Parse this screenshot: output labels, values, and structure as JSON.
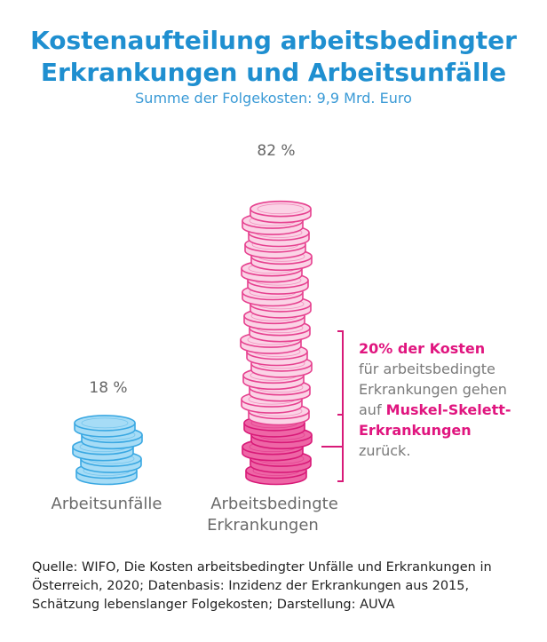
{
  "title_line1": "Kostenaufteilung arbeitsbedingter",
  "title_line2": "Erkrankungen und Arbeitsunfälle",
  "subtitle": "Summe der Folgekosten: 9,9 Mrd. Euro",
  "chart_data": {
    "type": "bar",
    "categories": [
      "Arbeitsunfälle",
      "Arbeitsbedingte Erkrankungen"
    ],
    "category_lines": [
      [
        "Arbeitsunfälle"
      ],
      [
        "Arbeitsbedingte",
        "Erkrankungen"
      ]
    ],
    "values": [
      18,
      82
    ],
    "value_labels": [
      "18 %",
      "82 %"
    ],
    "unit": "%",
    "highlight": {
      "category": "Arbeitsbedingte Erkrankungen",
      "share_of_category": 20
    }
  },
  "annotation": {
    "line1": "20% der Kosten",
    "line2": "für arbeitsbedingte",
    "line3": "Erkrankungen gehen",
    "line4_prefix": "auf ",
    "line4_highlight": "Muskel-Skelett-",
    "line5": "Erkrankungen",
    "line6": "zurück."
  },
  "source": {
    "line1": "Quelle: WIFO, Die Kosten arbeitsbedingter Unfälle und Erkrankungen in",
    "line2": "Österreich, 2020; Datenbasis: Inzidenz der Erkrankungen aus 2015,",
    "line3": "Schätzung lebenslanger Folgekosten; Darstellung: AUVA"
  },
  "colors": {
    "title": "#1f8fd0",
    "accident_fill": "#a6dcf6",
    "accident_stroke": "#3aa8e2",
    "disease_fill": "#fbd3e6",
    "disease_stroke": "#e6418f",
    "msk_fill": "#ee66a6",
    "msk_stroke": "#d81a78",
    "highlight_text": "#e0157f",
    "bracket": "#d81a78"
  }
}
